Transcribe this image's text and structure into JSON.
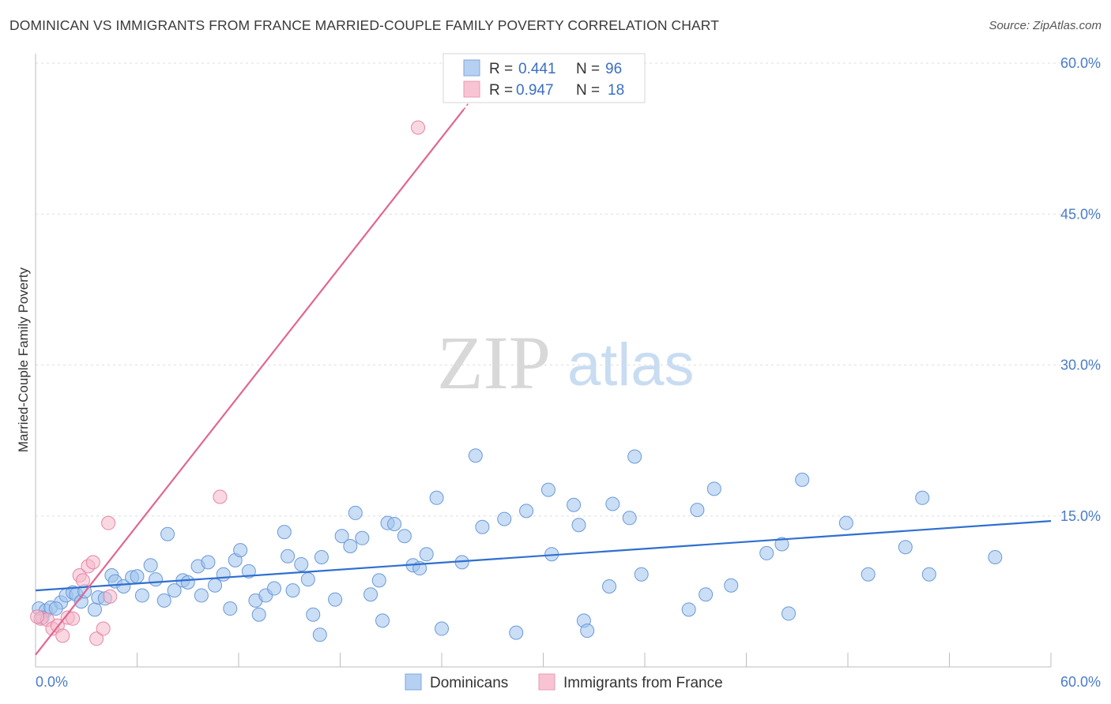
{
  "title": "DOMINICAN VS IMMIGRANTS FROM FRANCE MARRIED-COUPLE FAMILY POVERTY CORRELATION CHART",
  "source": "Source: ZipAtlas.com",
  "watermark": {
    "zip": "ZIP",
    "atlas": "atlas"
  },
  "chart_data": {
    "type": "scatter",
    "title": "DOMINICAN VS IMMIGRANTS FROM FRANCE MARRIED-COUPLE FAMILY POVERTY CORRELATION CHART",
    "xlabel": "",
    "ylabel": "Married-Couple Family Poverty",
    "xlim": [
      0,
      60
    ],
    "ylim": [
      0,
      60
    ],
    "x_tick_labels": [
      "0.0%",
      "60.0%"
    ],
    "y_ticks": [
      15,
      30,
      45,
      60
    ],
    "y_tick_labels": [
      "15.0%",
      "30.0%",
      "45.0%",
      "60.0%"
    ],
    "grid": true,
    "legend": {
      "position": "top-center",
      "entries": [
        {
          "r_label": "R =",
          "r_value": "0.441",
          "n_label": "N =",
          "n_value": "96"
        },
        {
          "r_label": "R =",
          "r_value": "0.947",
          "n_label": "N =",
          "n_value": "18"
        }
      ]
    },
    "series": [
      {
        "name": "Dominicans",
        "color": "#9fc2ee",
        "stroke": "#6a9ad6",
        "line_color": "#2f6fd0",
        "trend": {
          "x": [
            0,
            60
          ],
          "y": [
            7.6,
            14.5
          ]
        },
        "points": [
          [
            0.2,
            5.8
          ],
          [
            0.6,
            5.6
          ],
          [
            0.9,
            5.9
          ],
          [
            1.5,
            6.4
          ],
          [
            1.8,
            7.1
          ],
          [
            2.2,
            7.4
          ],
          [
            2.4,
            7.2
          ],
          [
            2.7,
            6.5
          ],
          [
            3.5,
            5.7
          ],
          [
            3.7,
            6.9
          ],
          [
            4.1,
            6.8
          ],
          [
            4.5,
            9.1
          ],
          [
            4.7,
            8.5
          ],
          [
            5.2,
            8.0
          ],
          [
            5.7,
            8.9
          ],
          [
            6.3,
            7.1
          ],
          [
            6.8,
            10.1
          ],
          [
            7.1,
            8.7
          ],
          [
            7.6,
            6.6
          ],
          [
            7.8,
            13.2
          ],
          [
            8.2,
            7.6
          ],
          [
            8.7,
            8.6
          ],
          [
            9.0,
            8.4
          ],
          [
            9.6,
            10.0
          ],
          [
            9.8,
            7.1
          ],
          [
            10.2,
            10.4
          ],
          [
            10.6,
            8.1
          ],
          [
            11.1,
            9.2
          ],
          [
            11.5,
            5.8
          ],
          [
            11.8,
            10.6
          ],
          [
            12.1,
            11.6
          ],
          [
            12.6,
            9.5
          ],
          [
            13.0,
            6.6
          ],
          [
            13.2,
            5.2
          ],
          [
            13.6,
            7.1
          ],
          [
            14.1,
            7.8
          ],
          [
            14.7,
            13.4
          ],
          [
            14.9,
            11.0
          ],
          [
            15.2,
            7.6
          ],
          [
            15.7,
            10.2
          ],
          [
            16.1,
            8.7
          ],
          [
            16.4,
            5.2
          ],
          [
            16.8,
            3.2
          ],
          [
            16.9,
            10.9
          ],
          [
            17.7,
            6.7
          ],
          [
            18.1,
            13.0
          ],
          [
            18.6,
            12.0
          ],
          [
            18.9,
            15.3
          ],
          [
            19.3,
            12.8
          ],
          [
            19.8,
            7.2
          ],
          [
            20.3,
            8.6
          ],
          [
            20.5,
            4.6
          ],
          [
            20.8,
            14.3
          ],
          [
            21.2,
            14.2
          ],
          [
            21.8,
            13.0
          ],
          [
            22.3,
            10.1
          ],
          [
            22.7,
            9.8
          ],
          [
            23.1,
            11.2
          ],
          [
            23.7,
            16.8
          ],
          [
            24.0,
            3.8
          ],
          [
            25.2,
            10.4
          ],
          [
            26.0,
            21.0
          ],
          [
            26.4,
            13.9
          ],
          [
            27.7,
            14.7
          ],
          [
            28.4,
            3.4
          ],
          [
            29.0,
            15.5
          ],
          [
            30.3,
            17.6
          ],
          [
            30.5,
            11.2
          ],
          [
            31.8,
            16.1
          ],
          [
            32.1,
            14.1
          ],
          [
            32.4,
            4.6
          ],
          [
            32.6,
            3.6
          ],
          [
            33.9,
            8.0
          ],
          [
            34.1,
            16.2
          ],
          [
            35.1,
            14.8
          ],
          [
            35.4,
            20.9
          ],
          [
            35.8,
            9.2
          ],
          [
            38.6,
            5.7
          ],
          [
            39.1,
            15.6
          ],
          [
            39.6,
            7.2
          ],
          [
            40.1,
            17.7
          ],
          [
            41.1,
            8.1
          ],
          [
            43.2,
            11.3
          ],
          [
            44.1,
            12.2
          ],
          [
            44.5,
            5.3
          ],
          [
            45.3,
            18.6
          ],
          [
            47.9,
            14.3
          ],
          [
            49.2,
            9.2
          ],
          [
            51.4,
            11.9
          ],
          [
            52.4,
            16.8
          ],
          [
            52.8,
            9.2
          ],
          [
            56.7,
            10.9
          ],
          [
            0.4,
            4.9
          ],
          [
            1.2,
            5.8
          ],
          [
            2.9,
            7.5
          ],
          [
            6.0,
            9.0
          ]
        ]
      },
      {
        "name": "Immigrants from France",
        "color": "#f5b8ca",
        "stroke": "#e587a5",
        "line_color": "#e0678f",
        "trend": {
          "x": [
            0,
            25.3
          ],
          "y": [
            1.2,
            55.4
          ]
        },
        "trend_dashed": {
          "x": [
            25.3,
            26.5
          ],
          "y": [
            55.4,
            58.0
          ]
        },
        "points": [
          [
            0.3,
            4.8
          ],
          [
            0.7,
            4.7
          ],
          [
            1.0,
            3.8
          ],
          [
            1.3,
            4.1
          ],
          [
            1.6,
            3.1
          ],
          [
            1.9,
            4.9
          ],
          [
            2.2,
            4.8
          ],
          [
            2.6,
            9.1
          ],
          [
            2.8,
            8.6
          ],
          [
            3.1,
            10.0
          ],
          [
            3.4,
            10.4
          ],
          [
            3.6,
            2.8
          ],
          [
            4.0,
            3.8
          ],
          [
            4.4,
            7.0
          ],
          [
            4.3,
            14.3
          ],
          [
            10.9,
            16.9
          ],
          [
            22.6,
            53.6
          ],
          [
            0.1,
            5.0
          ]
        ]
      }
    ]
  },
  "bottom_legend": {
    "series1_label": "Dominicans",
    "series2_label": "Immigrants from France"
  }
}
